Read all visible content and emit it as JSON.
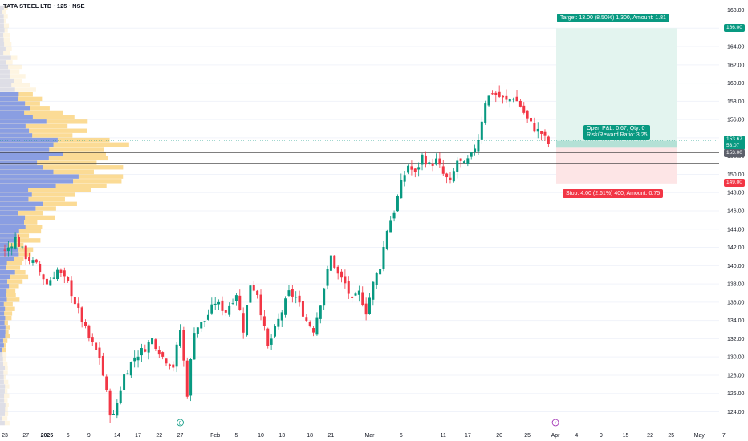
{
  "title": "TATA STEEL LTD · 125 · NSE",
  "chart_data": {
    "type": "candlestick",
    "ylim": [
      122.5,
      169
    ],
    "y_ticks": [
      124,
      126,
      128,
      130,
      132,
      134,
      136,
      138,
      140,
      142,
      144,
      146,
      148,
      150,
      152,
      154,
      156,
      158,
      160,
      162,
      164,
      166,
      168
    ],
    "x_ticks": [
      {
        "label": "23",
        "i": 0
      },
      {
        "label": "27",
        "i": 6
      },
      {
        "label": "2025",
        "i": 12
      },
      {
        "label": "6",
        "i": 18
      },
      {
        "label": "9",
        "i": 24
      },
      {
        "label": "14",
        "i": 32
      },
      {
        "label": "17",
        "i": 38
      },
      {
        "label": "22",
        "i": 44
      },
      {
        "label": "27",
        "i": 50
      },
      {
        "label": "Feb",
        "i": 60
      },
      {
        "label": "5",
        "i": 66
      },
      {
        "label": "10",
        "i": 73
      },
      {
        "label": "13",
        "i": 79
      },
      {
        "label": "18",
        "i": 87
      },
      {
        "label": "21",
        "i": 93
      },
      {
        "label": "Mar",
        "i": 104
      },
      {
        "label": "6",
        "i": 113
      },
      {
        "label": "11",
        "i": 125
      },
      {
        "label": "17",
        "i": 132
      },
      {
        "label": "20",
        "i": 141
      },
      {
        "label": "25",
        "i": 149
      },
      {
        "label": "Apr",
        "i": 157
      },
      {
        "label": "4",
        "i": 163
      },
      {
        "label": "9",
        "i": 170
      },
      {
        "label": "15",
        "i": 177
      },
      {
        "label": "22",
        "i": 184
      },
      {
        "label": "25",
        "i": 190
      },
      {
        "label": "May",
        "i": 198
      },
      {
        "label": "7",
        "i": 205
      }
    ],
    "anchors": [
      [
        0,
        141.5
      ],
      [
        3,
        143
      ],
      [
        6,
        141
      ],
      [
        9,
        140
      ],
      [
        12,
        138
      ],
      [
        15,
        139.5
      ],
      [
        18,
        138
      ],
      [
        21,
        135
      ],
      [
        24,
        132
      ],
      [
        27,
        130
      ],
      [
        30,
        124
      ],
      [
        31,
        123.5
      ],
      [
        34,
        128
      ],
      [
        37,
        130
      ],
      [
        40,
        131
      ],
      [
        42,
        132
      ],
      [
        45,
        130
      ],
      [
        48,
        129
      ],
      [
        50,
        133
      ],
      [
        52,
        126
      ],
      [
        54,
        133
      ],
      [
        57,
        134
      ],
      [
        60,
        136
      ],
      [
        63,
        135
      ],
      [
        66,
        137
      ],
      [
        68,
        133
      ],
      [
        70,
        138
      ],
      [
        72,
        137
      ],
      [
        75,
        131
      ],
      [
        78,
        134
      ],
      [
        81,
        137
      ],
      [
        83,
        136.5
      ],
      [
        86,
        134
      ],
      [
        88,
        133
      ],
      [
        90,
        136
      ],
      [
        93,
        141
      ],
      [
        95,
        139
      ],
      [
        97,
        138
      ],
      [
        99,
        136
      ],
      [
        101,
        137
      ],
      [
        103,
        135
      ],
      [
        105,
        138
      ],
      [
        107,
        140
      ],
      [
        109,
        144
      ],
      [
        111,
        146
      ],
      [
        113,
        149
      ],
      [
        115,
        151
      ],
      [
        117,
        150
      ],
      [
        119,
        152
      ],
      [
        121,
        151
      ],
      [
        123,
        151.5
      ],
      [
        125,
        150
      ],
      [
        127,
        149
      ],
      [
        129,
        151.5
      ],
      [
        131,
        151
      ],
      [
        133,
        152
      ],
      [
        135,
        154
      ],
      [
        137,
        158
      ],
      [
        139,
        159
      ],
      [
        141,
        158.5
      ],
      [
        143,
        158
      ],
      [
        145,
        158.5
      ],
      [
        147,
        157.5
      ],
      [
        149,
        156
      ],
      [
        151,
        155
      ],
      [
        153,
        154.5
      ],
      [
        155,
        153.4
      ]
    ],
    "last_price": 153.67,
    "countdown": "53:07",
    "price_level_153": 153.0,
    "support_line_1": 152.4,
    "support_line_2": 151.2,
    "position": {
      "entry": 153.0,
      "target_price": 166.0,
      "stop_price": 149.0,
      "target_label": "Target: 13.00 (8.50%) 1,300, Amount: 1.81",
      "stop_label": "Stop: 4.00 (2.61%) 400, Amount: 0.75",
      "open_label": "Open P&L: 0.67, Qty: 0",
      "ratio_label": "Risk/Reward Ratio: 3.25",
      "entry_tag": "153.00",
      "target_tag": "166.00",
      "stop_tag": "149.00",
      "last_tag": "153.67"
    },
    "events": [
      {
        "symbol": "E",
        "i": 50
      },
      {
        "symbol": "⚡",
        "i": 157
      }
    ]
  },
  "colors": {
    "up": "#089981",
    "down": "#f23645",
    "target_zone": "#e3f4ef",
    "stop_zone": "#fde5e6",
    "vp_up": "#6e8ef5",
    "vp_down": "#fad27a"
  }
}
